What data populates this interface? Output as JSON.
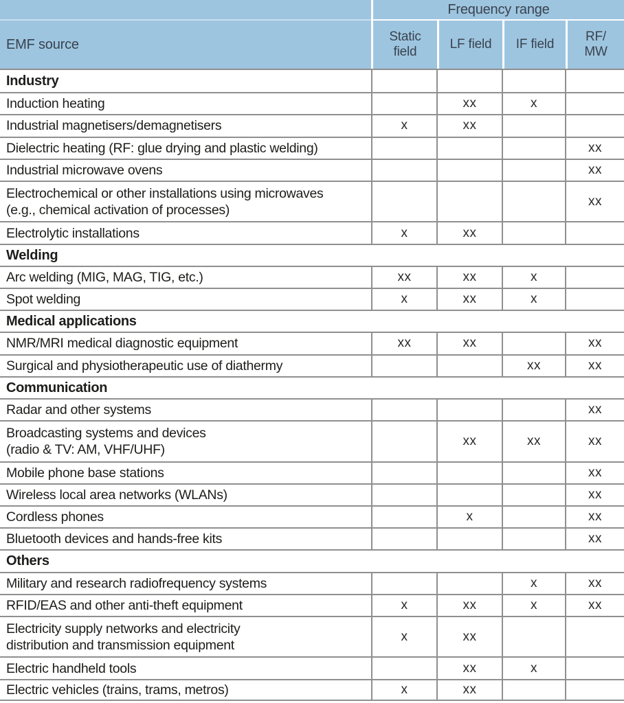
{
  "colors": {
    "header_bg": "#9ec5e0",
    "header_text": "#39434e",
    "grid_line": "#8f8f8f",
    "body_text": "#1d1d1b",
    "cell_bg": "#ffffff"
  },
  "header": {
    "emf_source": "EMF source",
    "frequency_range": "Frequency range",
    "columns": [
      "Static field",
      "LF field",
      "IF field",
      "RF/ MW"
    ]
  },
  "rows": [
    {
      "type": "section",
      "label": "Industry",
      "dividers": true,
      "marks": [
        "",
        "",
        "",
        ""
      ]
    },
    {
      "type": "item",
      "label": "Induction heating",
      "marks": [
        "",
        "xx",
        "x",
        ""
      ]
    },
    {
      "type": "item",
      "label": "Industrial magnetisers/demagnetisers",
      "marks": [
        "x",
        "xx",
        "",
        ""
      ]
    },
    {
      "type": "item",
      "label": "Dielectric heating (RF: glue drying and plastic welding)",
      "marks": [
        "",
        "",
        "",
        "xx"
      ]
    },
    {
      "type": "item",
      "label": "Industrial microwave ovens",
      "marks": [
        "",
        "",
        "",
        "xx"
      ]
    },
    {
      "type": "item",
      "tall": true,
      "label": "Electrochemical or other installations using microwaves\n(e.g., chemical activation of processes)",
      "marks": [
        "",
        "",
        "",
        "xx"
      ]
    },
    {
      "type": "item",
      "label": "Electrolytic installations",
      "marks": [
        "x",
        "xx",
        "",
        ""
      ]
    },
    {
      "type": "section",
      "label": "Welding",
      "dividers": false
    },
    {
      "type": "item",
      "label": "Arc welding (MIG, MAG, TIG, etc.)",
      "marks": [
        "xx",
        "xx",
        "x",
        ""
      ]
    },
    {
      "type": "item",
      "label": "Spot welding",
      "marks": [
        "x",
        "xx",
        "x",
        ""
      ]
    },
    {
      "type": "section",
      "label": "Medical applications",
      "dividers": false
    },
    {
      "type": "item",
      "label": "NMR/MRI medical diagnostic equipment",
      "marks": [
        "xx",
        "xx",
        "",
        "xx"
      ]
    },
    {
      "type": "item",
      "label": "Surgical and physiotherapeutic use of diathermy",
      "marks": [
        "",
        "",
        "xx",
        "xx"
      ]
    },
    {
      "type": "section",
      "label": "Communication",
      "dividers": false
    },
    {
      "type": "item",
      "label": "Radar and other systems",
      "marks": [
        "",
        "",
        "",
        "xx"
      ]
    },
    {
      "type": "item",
      "tall": true,
      "label": "Broadcasting systems and devices\n(radio & TV: AM, VHF/UHF)",
      "marks": [
        "",
        "xx",
        "xx",
        "xx"
      ]
    },
    {
      "type": "item",
      "label": "Mobile phone base stations",
      "marks": [
        "",
        "",
        "",
        "xx"
      ]
    },
    {
      "type": "item",
      "label": "Wireless local area networks (WLANs)",
      "marks": [
        "",
        "",
        "",
        "xx"
      ]
    },
    {
      "type": "item",
      "label": "Cordless phones",
      "marks": [
        "",
        "x",
        "",
        "xx"
      ]
    },
    {
      "type": "item",
      "label": "Bluetooth devices and hands-free kits",
      "marks": [
        "",
        "",
        "",
        "xx"
      ]
    },
    {
      "type": "section",
      "label": "Others",
      "dividers": false
    },
    {
      "type": "item",
      "label": "Military and research radiofrequency systems",
      "marks": [
        "",
        "",
        "x",
        "xx"
      ]
    },
    {
      "type": "item",
      "label": "RFID/EAS and other anti-theft equipment",
      "marks": [
        "x",
        "xx",
        "x",
        "xx"
      ]
    },
    {
      "type": "item",
      "tall": true,
      "label": "Electricity supply networks and electricity\ndistribution and transmission equipment",
      "marks": [
        "x",
        "xx",
        "",
        ""
      ]
    },
    {
      "type": "item",
      "label": "Electric handheld tools",
      "marks": [
        "",
        "xx",
        "x",
        ""
      ]
    },
    {
      "type": "item",
      "label": "Electric vehicles (trains, trams, metros)",
      "marks": [
        "x",
        "xx",
        "",
        ""
      ]
    }
  ]
}
